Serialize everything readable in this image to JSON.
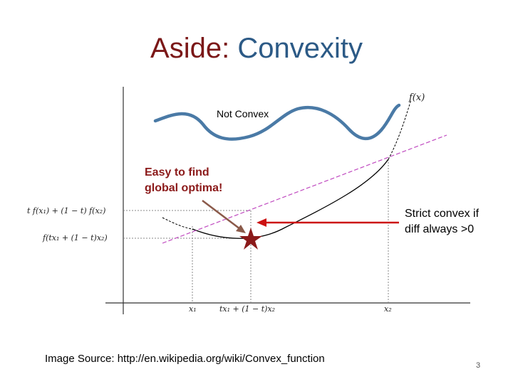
{
  "slide": {
    "title_part1": "Aside: ",
    "title_part2": "Convexity",
    "title_color1": "#7b1818",
    "title_color2": "#2c5a86",
    "page_number": "3",
    "source": "Image Source: http://en.wikipedia.org/wiki/Convex_function"
  },
  "figure": {
    "function_label": "f(x)",
    "not_convex_label": "Not Convex",
    "easy_label_line1": "Easy to find",
    "easy_label_line2": "global optima!",
    "strict_label_line1": "Strict convex if",
    "strict_label_line2": "diff always >0",
    "y_label_upper": "t f(x₁) + (1 − t) f(x₂)",
    "y_label_lower": "f(tx₁ + (1 − t)x₂)",
    "x_label_1": "x₁",
    "x_label_mid": "tx₁ + (1 − t)x₂",
    "x_label_2": "x₂",
    "convex_curve_color": "#000000",
    "nonconvex_curve_color": "#4a7aa6",
    "chord_color": "#c04ac0",
    "arrow_color": "#cc1111",
    "star_color": "#8b1a1a",
    "easy_arrow_color": "#8b5a4a"
  }
}
